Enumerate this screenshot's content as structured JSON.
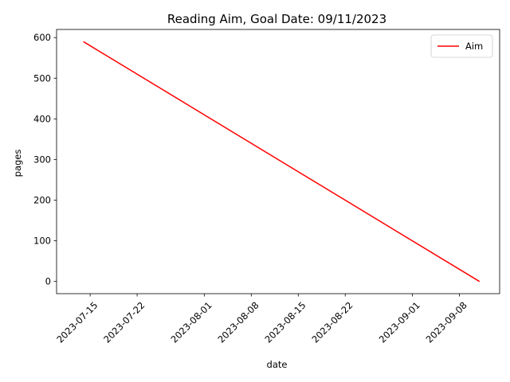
{
  "chart_data": {
    "type": "line",
    "title": "Reading Aim, Goal Date: 09/11/2023",
    "xlabel": "date",
    "ylabel": "pages",
    "x_type": "date",
    "xlim": [
      "2023-07-10",
      "2023-09-14"
    ],
    "ylim": [
      -30,
      620
    ],
    "x_ticks": [
      "2023-07-15",
      "2023-07-22",
      "2023-08-01",
      "2023-08-08",
      "2023-08-15",
      "2023-08-22",
      "2023-09-01",
      "2023-09-08"
    ],
    "y_ticks": [
      0,
      100,
      200,
      300,
      400,
      500,
      600
    ],
    "grid": false,
    "legend_position": "top-right",
    "series": [
      {
        "name": "Aim",
        "color": "#ff0000",
        "x": [
          "2023-07-14",
          "2023-09-11"
        ],
        "y": [
          590,
          0
        ]
      }
    ]
  }
}
